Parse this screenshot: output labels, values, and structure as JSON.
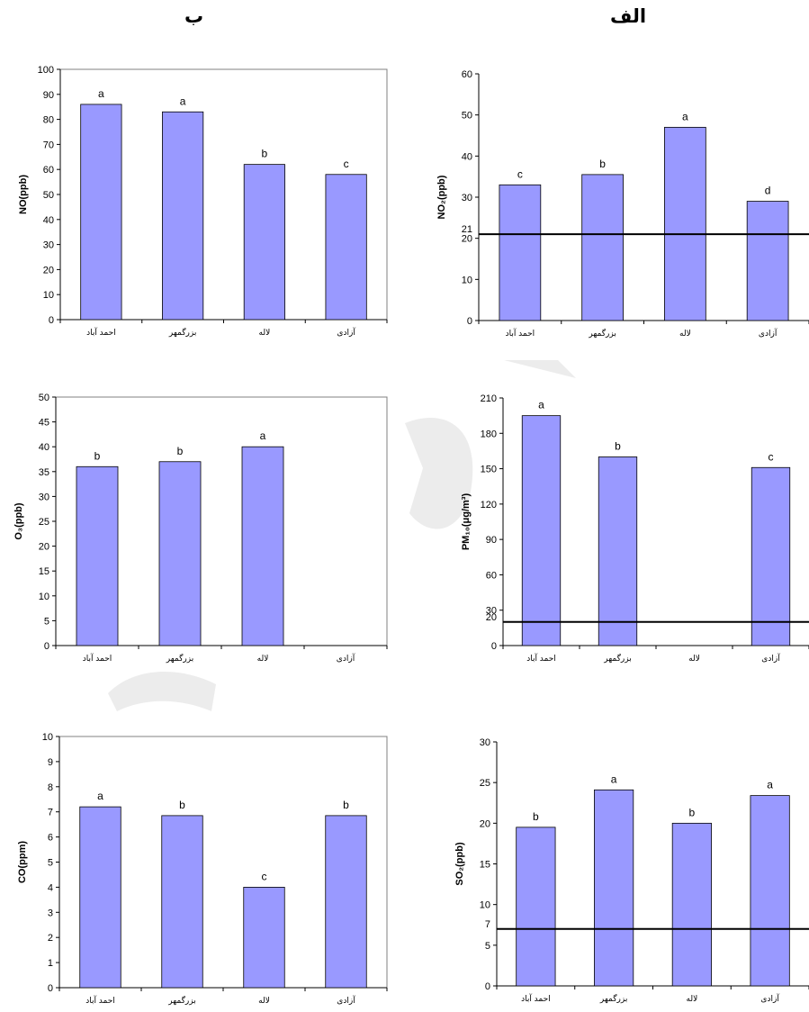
{
  "headings": {
    "left": "ب",
    "right": "الف"
  },
  "colors": {
    "bar": "#9999ff",
    "frame": "#808080",
    "watermark": "#e6e6e6"
  },
  "chart_data": [
    {
      "id": "no",
      "type": "bar",
      "categories": [
        "احمد آباد",
        "بزرگمهر",
        "لاله",
        "آزادی"
      ],
      "values": [
        86,
        83,
        62,
        58
      ],
      "significance": [
        "a",
        "a",
        "b",
        "c"
      ],
      "ylabel": "NO(ppb)",
      "ylim": [
        0,
        100
      ],
      "yticks": [
        0,
        10,
        20,
        30,
        40,
        50,
        60,
        70,
        80,
        90,
        100
      ]
    },
    {
      "id": "no2",
      "type": "bar",
      "categories": [
        "احمد آباد",
        "بزرگمهر",
        "لاله",
        "آزادی"
      ],
      "values": [
        33,
        35.5,
        47,
        29
      ],
      "significance": [
        "c",
        "b",
        "a",
        "d"
      ],
      "ylabel": "NO₂(ppb)",
      "ylim": [
        0,
        60
      ],
      "yticks": [
        0,
        10,
        20,
        30,
        40,
        50,
        60
      ],
      "reference_line": 21,
      "reference_label": "21"
    },
    {
      "id": "o3",
      "type": "bar",
      "categories": [
        "احمد آباد",
        "بزرگمهر",
        "لاله",
        "آزادی"
      ],
      "values": [
        36,
        37,
        40,
        null
      ],
      "significance": [
        "b",
        "b",
        "a",
        ""
      ],
      "ylabel": "O₃(ppb)",
      "ylim": [
        0,
        50
      ],
      "yticks": [
        0,
        5,
        10,
        15,
        20,
        25,
        30,
        35,
        40,
        45,
        50
      ]
    },
    {
      "id": "pm10",
      "type": "bar",
      "categories": [
        "احمد آباد",
        "بزرگمهر",
        "لاله",
        "آزادی"
      ],
      "values": [
        195,
        160,
        null,
        151
      ],
      "significance": [
        "a",
        "b",
        "",
        "c"
      ],
      "ylabel": "PM₁₀(μg/m³)",
      "ylim": [
        0,
        210
      ],
      "yticks": [
        0,
        30,
        60,
        90,
        120,
        150,
        180,
        210
      ],
      "reference_line": 20,
      "reference_label": "20"
    },
    {
      "id": "co",
      "type": "bar",
      "categories": [
        "احمد آباد",
        "بزرگمهر",
        "لاله",
        "آزادی"
      ],
      "values": [
        7.2,
        6.85,
        4,
        6.85
      ],
      "significance": [
        "a",
        "b",
        "c",
        "b"
      ],
      "ylabel": "CO(ppm)",
      "ylim": [
        0,
        10
      ],
      "yticks": [
        0,
        1,
        2,
        3,
        4,
        5,
        6,
        7,
        8,
        9,
        10
      ]
    },
    {
      "id": "so2",
      "type": "bar",
      "categories": [
        "احمد آباد",
        "بزرگمهر",
        "لاله",
        "آزادی"
      ],
      "values": [
        19.5,
        24.1,
        20,
        23.4
      ],
      "significance": [
        "b",
        "a",
        "b",
        "a"
      ],
      "ylabel": "SO₂(ppb)",
      "ylim": [
        0,
        30
      ],
      "yticks": [
        0,
        5,
        10,
        15,
        20,
        25,
        30
      ],
      "reference_line": 7,
      "reference_label": "7"
    }
  ]
}
